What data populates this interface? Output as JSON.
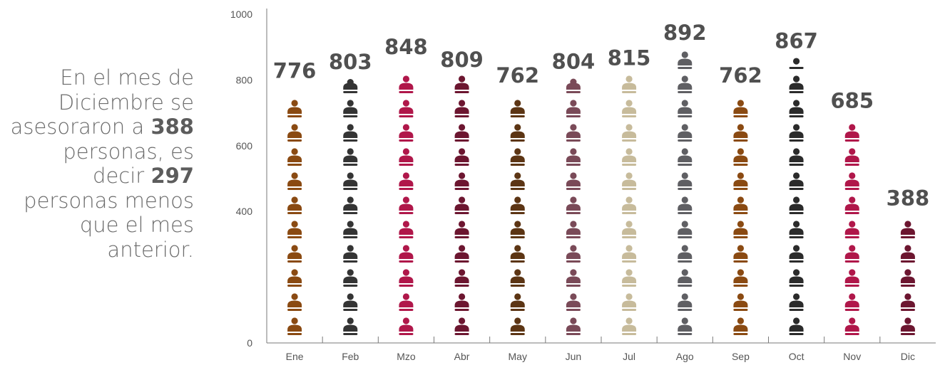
{
  "summary": {
    "line1": "En el mes de",
    "line2": "Diciembre  se",
    "line3_pre": "asesoraron a ",
    "line3_num": "388",
    "line4": "personas, es",
    "line5_pre": "decir ",
    "line5_num": "297",
    "line6": "personas menos",
    "line7": "que el mes",
    "line8": "anterior."
  },
  "chart_data": {
    "type": "bar",
    "style": "pictogram-person-icons",
    "categories": [
      "Ene",
      "Feb",
      "Mzo",
      "Abr",
      "May",
      "Jun",
      "Jul",
      "Ago",
      "Sep",
      "Oct",
      "Nov",
      "Dic"
    ],
    "values": [
      776,
      803,
      848,
      809,
      762,
      804,
      815,
      892,
      762,
      867,
      685,
      388
    ],
    "value_labels": [
      "776",
      "803",
      "848",
      "809",
      "762",
      "804",
      "815",
      "892",
      "762",
      "867",
      "685",
      "388"
    ],
    "colors": [
      "#8a4a12",
      "#343434",
      "#b0174a",
      "#6c1630",
      "#5c3514",
      "#7a4a58",
      "#c7bb9b",
      "#5f5f63",
      "#8a4a12",
      "#2b2b2b",
      "#b0174a",
      "#6c1630"
    ],
    "ylim": [
      0,
      1000
    ],
    "yticks": [
      0,
      200,
      400,
      600,
      800,
      1000
    ],
    "ytick_labels": [
      "0",
      "",
      "400",
      "600",
      "800",
      "1000"
    ],
    "title": "",
    "xlabel": "",
    "ylabel": "",
    "grid": false,
    "legend": "none"
  }
}
